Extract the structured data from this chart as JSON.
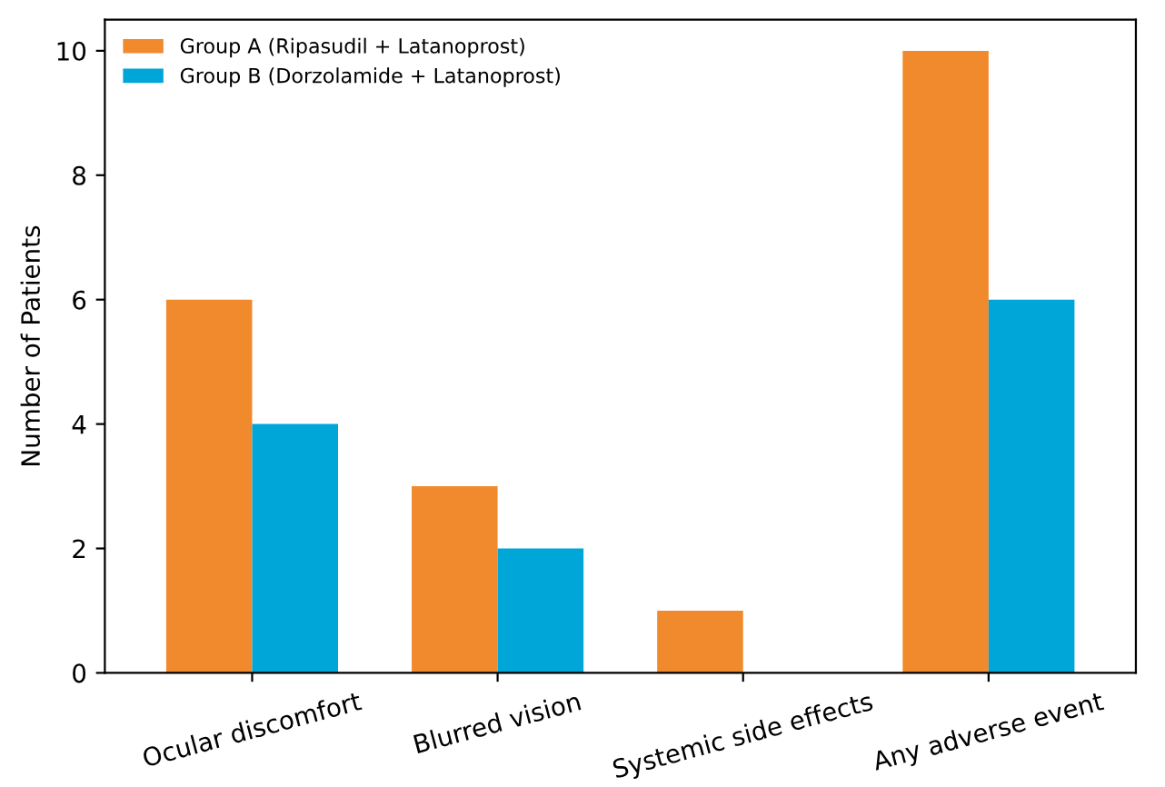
{
  "chart_data": {
    "type": "bar",
    "ylabel": "Number of Patients",
    "categories": [
      "Ocular discomfort",
      "Blurred vision",
      "Systemic side effects",
      "Any adverse event"
    ],
    "series": [
      {
        "name": "Group A (Ripasudil + Latanoprost)",
        "color": "#f08a2c",
        "values": [
          6,
          3,
          1,
          10
        ]
      },
      {
        "name": "Group B (Dorzolamide + Latanoprost)",
        "color": "#00a6d8",
        "values": [
          4,
          2,
          0,
          6
        ]
      }
    ],
    "ylim": [
      0,
      10.5
    ],
    "yticks": [
      0,
      2,
      4,
      6,
      8,
      10
    ],
    "grid": false,
    "legend": "top left"
  }
}
